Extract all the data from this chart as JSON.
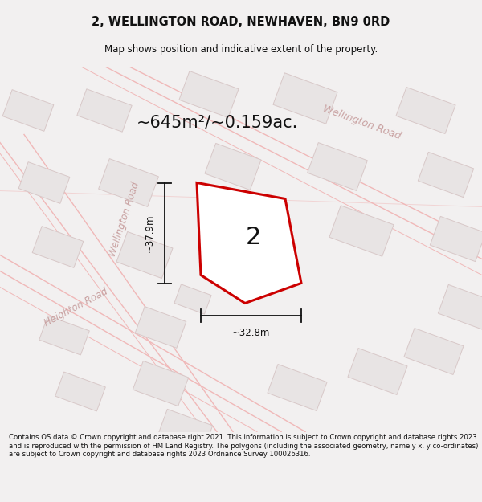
{
  "title_line1": "2, WELLINGTON ROAD, NEWHAVEN, BN9 0RD",
  "title_line2": "Map shows position and indicative extent of the property.",
  "area_text": "~645m²/~0.159ac.",
  "property_number": "2",
  "dim_width": "~32.8m",
  "dim_height": "~37.9m",
  "footer_text": "Contains OS data © Crown copyright and database right 2021. This information is subject to Crown copyright and database rights 2023 and is reproduced with the permission of HM Land Registry. The polygons (including the associated geometry, namely x, y co-ordinates) are subject to Crown copyright and database rights 2023 Ordnance Survey 100026316.",
  "bg_color": "#f2f0f0",
  "map_bg": "#f8f6f6",
  "road_line_color": "#f0b8b8",
  "building_fill": "#e8e4e4",
  "building_edge": "#d8c8c8",
  "property_fill": "#ffffff",
  "property_edge": "#cc0000",
  "road_label_color": "#c8a0a0",
  "title_color": "#111111",
  "footer_color": "#111111",
  "dim_color": "#111111",
  "area_text_color": "#111111",
  "welly_road_top_label": "Wellington Road",
  "welly_road_left_label": "Wellington Road",
  "heighton_road_label": "Heighton Road"
}
